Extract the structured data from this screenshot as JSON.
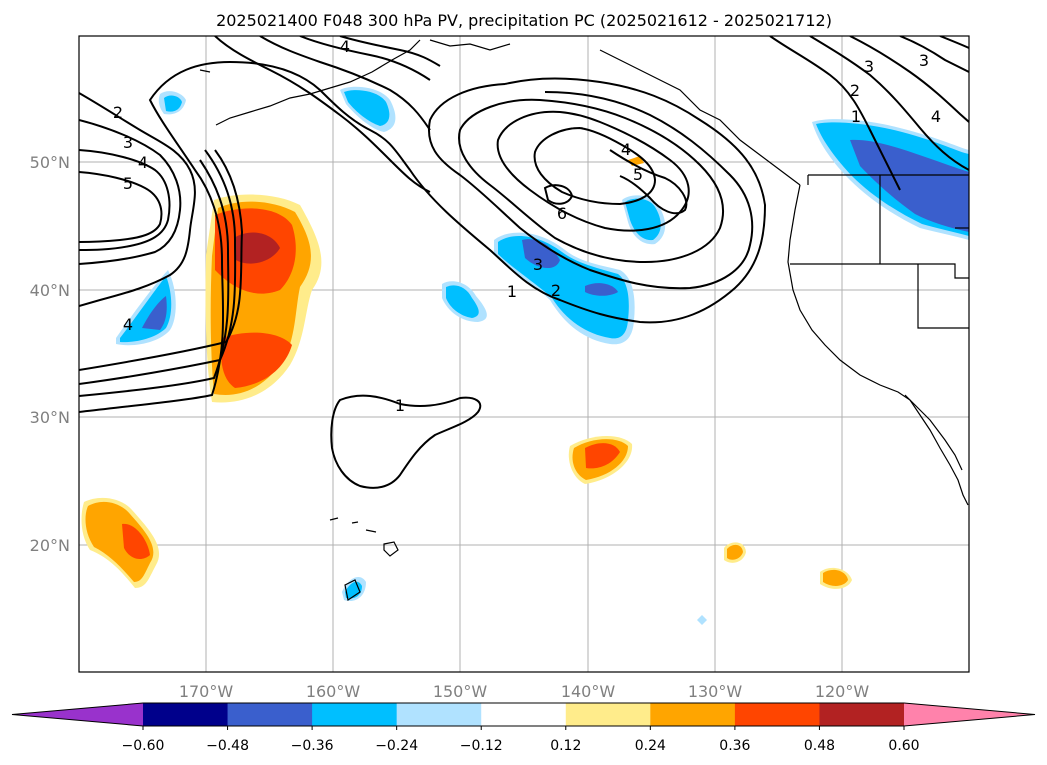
{
  "title": "2025021400 F048 300 hPa PV, precipitation PC (2025021612 - 2025021712)",
  "map": {
    "lat_labels": [
      "50°N",
      "40°N",
      "30°N",
      "20°N"
    ],
    "lon_labels": [
      "170°W",
      "160°W",
      "150°W",
      "140°W",
      "130°W",
      "120°W"
    ],
    "grid": true,
    "pv_contour_labels": [
      "1",
      "2",
      "3",
      "4",
      "5",
      "6"
    ]
  },
  "colorbar": {
    "tick_labels": [
      "−0.60",
      "−0.48",
      "−0.36",
      "−0.24",
      "−0.12",
      "0.12",
      "0.24",
      "0.36",
      "0.48",
      "0.60"
    ],
    "colors": [
      "#9932cc",
      "#00008b",
      "#3a5fcd",
      "#00bfff",
      "#b0e2ff",
      "#ffffff",
      "#ffec8b",
      "#ffa500",
      "#ff4500",
      "#b22222",
      "#ff82ab"
    ],
    "extend": "both"
  }
}
